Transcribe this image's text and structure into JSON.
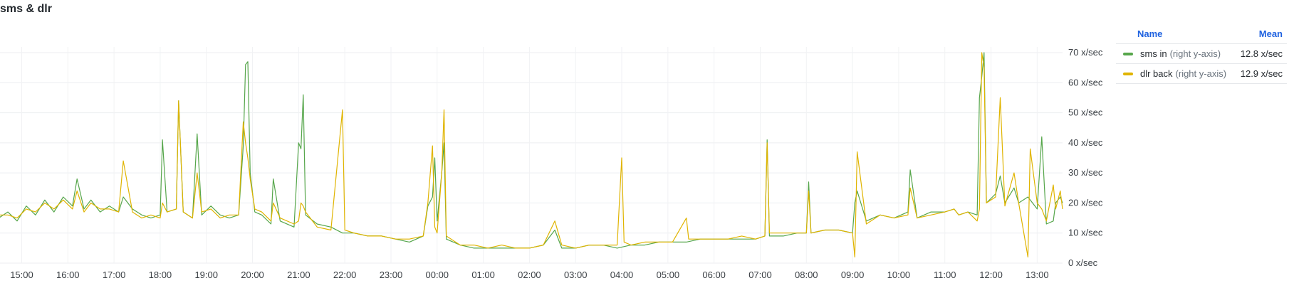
{
  "panel": {
    "title": "sms & dlr"
  },
  "legend": {
    "name_header": "Name",
    "mean_header": "Mean",
    "items": [
      {
        "name": "sms in",
        "axis_note": "(right y-axis)",
        "mean": "12.8 x/sec",
        "color": "#56a64b"
      },
      {
        "name": "dlr back",
        "axis_note": "(right y-axis)",
        "mean": "12.9 x/sec",
        "color": "#e0b400"
      }
    ]
  },
  "chart_data": {
    "type": "line",
    "x_unit": "hour",
    "x_tick_labels": [
      "15:00",
      "16:00",
      "17:00",
      "18:00",
      "19:00",
      "20:00",
      "21:00",
      "22:00",
      "23:00",
      "00:00",
      "01:00",
      "02:00",
      "03:00",
      "04:00",
      "05:00",
      "06:00",
      "07:00",
      "08:00",
      "09:00",
      "10:00",
      "11:00",
      "12:00",
      "13:00"
    ],
    "y_tick_labels": [
      "0 x/sec",
      "10 x/sec",
      "20 x/sec",
      "30 x/sec",
      "40 x/sec",
      "50 x/sec",
      "60 x/sec",
      "70 x/sec"
    ],
    "ylim": [
      0,
      70
    ],
    "y_axis_side": "right",
    "grid": true,
    "legend_position": "right",
    "series": [
      {
        "name": "sms in",
        "color": "#56a64b",
        "points": [
          [
            14.5,
            15
          ],
          [
            14.7,
            17
          ],
          [
            14.9,
            14
          ],
          [
            15.1,
            19
          ],
          [
            15.3,
            16
          ],
          [
            15.5,
            21
          ],
          [
            15.7,
            17
          ],
          [
            15.9,
            22
          ],
          [
            16.1,
            19
          ],
          [
            16.2,
            28
          ],
          [
            16.35,
            18
          ],
          [
            16.5,
            21
          ],
          [
            16.7,
            17
          ],
          [
            16.9,
            19
          ],
          [
            17.1,
            17
          ],
          [
            17.2,
            22
          ],
          [
            17.4,
            18
          ],
          [
            17.6,
            16
          ],
          [
            17.8,
            15
          ],
          [
            18.0,
            16
          ],
          [
            18.05,
            41
          ],
          [
            18.15,
            17
          ],
          [
            18.35,
            18
          ],
          [
            18.4,
            54
          ],
          [
            18.5,
            17
          ],
          [
            18.7,
            15
          ],
          [
            18.8,
            43
          ],
          [
            18.9,
            16
          ],
          [
            19.1,
            19
          ],
          [
            19.3,
            16
          ],
          [
            19.5,
            15
          ],
          [
            19.7,
            16
          ],
          [
            19.8,
            39
          ],
          [
            19.85,
            66
          ],
          [
            19.9,
            67
          ],
          [
            19.95,
            30
          ],
          [
            20.05,
            17
          ],
          [
            20.2,
            16
          ],
          [
            20.4,
            13
          ],
          [
            20.45,
            28
          ],
          [
            20.6,
            14
          ],
          [
            20.9,
            12
          ],
          [
            21.0,
            40
          ],
          [
            21.05,
            38
          ],
          [
            21.1,
            56
          ],
          [
            21.15,
            16
          ],
          [
            21.4,
            13
          ],
          [
            21.7,
            12
          ],
          [
            21.95,
            10
          ],
          [
            22.2,
            10
          ],
          [
            22.5,
            9
          ],
          [
            22.8,
            9
          ],
          [
            23.1,
            8
          ],
          [
            23.4,
            7
          ],
          [
            23.7,
            9
          ],
          [
            23.8,
            19
          ],
          [
            23.9,
            22
          ],
          [
            23.95,
            35
          ],
          [
            24.0,
            14
          ],
          [
            24.1,
            30
          ],
          [
            24.15,
            40
          ],
          [
            24.2,
            8
          ],
          [
            24.5,
            6
          ],
          [
            24.8,
            5
          ],
          [
            25.1,
            5
          ],
          [
            25.4,
            5
          ],
          [
            25.7,
            5
          ],
          [
            26.0,
            5
          ],
          [
            26.3,
            6
          ],
          [
            26.55,
            11
          ],
          [
            26.7,
            5
          ],
          [
            27.0,
            5
          ],
          [
            27.3,
            6
          ],
          [
            27.6,
            6
          ],
          [
            27.9,
            5
          ],
          [
            28.2,
            6
          ],
          [
            28.5,
            6
          ],
          [
            28.8,
            7
          ],
          [
            29.1,
            7
          ],
          [
            29.4,
            7
          ],
          [
            29.7,
            8
          ],
          [
            30.0,
            8
          ],
          [
            30.3,
            8
          ],
          [
            30.6,
            8
          ],
          [
            30.9,
            8
          ],
          [
            31.1,
            9
          ],
          [
            31.15,
            41
          ],
          [
            31.2,
            9
          ],
          [
            31.5,
            9
          ],
          [
            31.8,
            10
          ],
          [
            32.0,
            10
          ],
          [
            32.05,
            27
          ],
          [
            32.1,
            10
          ],
          [
            32.4,
            11
          ],
          [
            32.7,
            11
          ],
          [
            33.0,
            10
          ],
          [
            33.05,
            20
          ],
          [
            33.1,
            24
          ],
          [
            33.3,
            14
          ],
          [
            33.6,
            16
          ],
          [
            33.9,
            15
          ],
          [
            34.2,
            17
          ],
          [
            34.25,
            31
          ],
          [
            34.4,
            15
          ],
          [
            34.7,
            17
          ],
          [
            35.0,
            17
          ],
          [
            35.2,
            18
          ],
          [
            35.3,
            16
          ],
          [
            35.5,
            17
          ],
          [
            35.7,
            16
          ],
          [
            35.75,
            55
          ],
          [
            35.8,
            62
          ],
          [
            35.85,
            70
          ],
          [
            35.9,
            20
          ],
          [
            36.1,
            23
          ],
          [
            36.2,
            29
          ],
          [
            36.3,
            20
          ],
          [
            36.5,
            25
          ],
          [
            36.6,
            20
          ],
          [
            36.8,
            22
          ],
          [
            37.0,
            18
          ],
          [
            37.1,
            42
          ],
          [
            37.2,
            13
          ],
          [
            37.35,
            14
          ],
          [
            37.4,
            20
          ],
          [
            37.5,
            22
          ],
          [
            37.55,
            20
          ]
        ]
      },
      {
        "name": "dlr back",
        "color": "#e0b400",
        "points": [
          [
            14.5,
            16
          ],
          [
            14.7,
            16
          ],
          [
            14.9,
            15
          ],
          [
            15.1,
            18
          ],
          [
            15.3,
            17
          ],
          [
            15.5,
            20
          ],
          [
            15.7,
            18
          ],
          [
            15.9,
            21
          ],
          [
            16.1,
            18
          ],
          [
            16.2,
            24
          ],
          [
            16.35,
            17
          ],
          [
            16.5,
            20
          ],
          [
            16.7,
            18
          ],
          [
            16.9,
            18
          ],
          [
            17.1,
            17
          ],
          [
            17.2,
            34
          ],
          [
            17.4,
            17
          ],
          [
            17.6,
            15
          ],
          [
            17.8,
            16
          ],
          [
            18.0,
            15
          ],
          [
            18.05,
            20
          ],
          [
            18.15,
            17
          ],
          [
            18.35,
            18
          ],
          [
            18.4,
            54
          ],
          [
            18.5,
            17
          ],
          [
            18.7,
            15
          ],
          [
            18.8,
            30
          ],
          [
            18.9,
            17
          ],
          [
            19.1,
            18
          ],
          [
            19.3,
            15
          ],
          [
            19.5,
            16
          ],
          [
            19.7,
            16
          ],
          [
            19.8,
            47
          ],
          [
            19.85,
            40
          ],
          [
            19.9,
            35
          ],
          [
            19.95,
            28
          ],
          [
            20.05,
            18
          ],
          [
            20.2,
            17
          ],
          [
            20.4,
            14
          ],
          [
            20.45,
            20
          ],
          [
            20.6,
            15
          ],
          [
            20.9,
            13
          ],
          [
            21.0,
            14
          ],
          [
            21.05,
            20
          ],
          [
            21.1,
            19
          ],
          [
            21.15,
            17
          ],
          [
            21.4,
            12
          ],
          [
            21.7,
            11
          ],
          [
            21.95,
            51
          ],
          [
            22.0,
            11
          ],
          [
            22.2,
            10
          ],
          [
            22.5,
            9
          ],
          [
            22.8,
            9
          ],
          [
            23.1,
            8
          ],
          [
            23.4,
            8
          ],
          [
            23.7,
            9
          ],
          [
            23.8,
            20
          ],
          [
            23.9,
            39
          ],
          [
            23.95,
            12
          ],
          [
            24.0,
            10
          ],
          [
            24.1,
            30
          ],
          [
            24.15,
            51
          ],
          [
            24.2,
            9
          ],
          [
            24.5,
            6
          ],
          [
            24.8,
            6
          ],
          [
            25.1,
            5
          ],
          [
            25.4,
            6
          ],
          [
            25.7,
            5
          ],
          [
            26.0,
            5
          ],
          [
            26.3,
            6
          ],
          [
            26.55,
            14
          ],
          [
            26.7,
            6
          ],
          [
            27.0,
            5
          ],
          [
            27.3,
            6
          ],
          [
            27.6,
            6
          ],
          [
            27.9,
            6
          ],
          [
            28.0,
            35
          ],
          [
            28.05,
            7
          ],
          [
            28.2,
            6
          ],
          [
            28.5,
            7
          ],
          [
            28.8,
            7
          ],
          [
            29.1,
            7
          ],
          [
            29.4,
            15
          ],
          [
            29.45,
            8
          ],
          [
            29.7,
            8
          ],
          [
            30.0,
            8
          ],
          [
            30.3,
            8
          ],
          [
            30.6,
            9
          ],
          [
            30.9,
            8
          ],
          [
            31.1,
            9
          ],
          [
            31.15,
            40
          ],
          [
            31.2,
            10
          ],
          [
            31.5,
            10
          ],
          [
            31.8,
            10
          ],
          [
            32.0,
            10
          ],
          [
            32.05,
            24
          ],
          [
            32.1,
            10
          ],
          [
            32.4,
            11
          ],
          [
            32.7,
            11
          ],
          [
            33.0,
            10
          ],
          [
            33.05,
            2
          ],
          [
            33.1,
            37
          ],
          [
            33.3,
            13
          ],
          [
            33.6,
            16
          ],
          [
            33.9,
            15
          ],
          [
            34.2,
            16
          ],
          [
            34.25,
            25
          ],
          [
            34.4,
            15
          ],
          [
            34.7,
            16
          ],
          [
            35.0,
            17
          ],
          [
            35.2,
            18
          ],
          [
            35.3,
            16
          ],
          [
            35.5,
            17
          ],
          [
            35.7,
            14
          ],
          [
            35.75,
            18
          ],
          [
            35.8,
            70
          ],
          [
            35.85,
            65
          ],
          [
            35.9,
            20
          ],
          [
            36.1,
            22
          ],
          [
            36.2,
            55
          ],
          [
            36.3,
            19
          ],
          [
            36.5,
            30
          ],
          [
            36.6,
            20
          ],
          [
            36.8,
            2
          ],
          [
            36.85,
            38
          ],
          [
            37.0,
            20
          ],
          [
            37.1,
            18
          ],
          [
            37.2,
            14
          ],
          [
            37.35,
            26
          ],
          [
            37.4,
            18
          ],
          [
            37.5,
            24
          ],
          [
            37.55,
            18
          ]
        ]
      }
    ]
  }
}
